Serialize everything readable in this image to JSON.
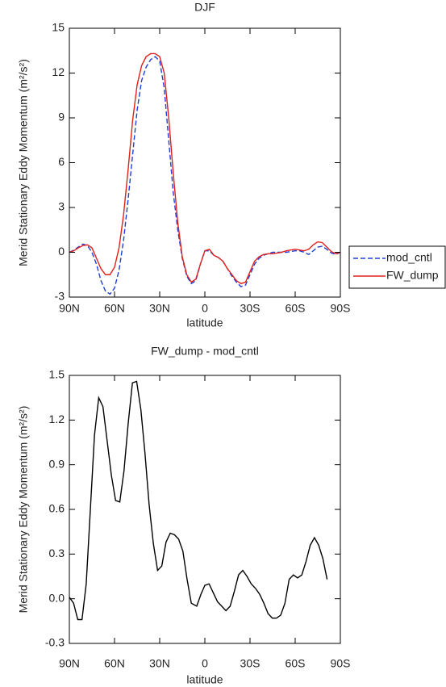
{
  "chart_data": [
    {
      "type": "line",
      "title": "DJF",
      "xlabel": "latitude",
      "ylabel": "Merid Stationary Eddy Momentum (m²/s²)",
      "x": [
        90,
        87,
        84,
        81,
        78,
        75,
        72,
        69,
        66,
        63,
        60,
        57,
        54,
        51,
        48,
        45,
        42,
        39,
        36,
        33,
        30,
        27,
        24,
        21,
        18,
        15,
        12,
        9,
        6,
        3,
        0,
        -3,
        -6,
        -9,
        -12,
        -15,
        -18,
        -21,
        -24,
        -27,
        -30,
        -33,
        -36,
        -39,
        -42,
        -45,
        -48,
        -51,
        -54,
        -57,
        -60,
        -63,
        -66,
        -69,
        -72,
        -75,
        -78,
        -81,
        -84,
        -87,
        -90
      ],
      "series": [
        {
          "name": "mod_cntl",
          "color": "#1f3fd6",
          "linestyle": "dashed",
          "values": [
            0,
            0.15,
            0.35,
            0.55,
            0.45,
            0,
            -0.8,
            -1.9,
            -2.6,
            -2.8,
            -2.4,
            -1.2,
            0.8,
            3.5,
            6.5,
            9.5,
            11.5,
            12.4,
            12.9,
            13.1,
            12.8,
            11,
            7.5,
            4,
            1.5,
            -0.4,
            -1.6,
            -2.1,
            -1.9,
            -0.8,
            0.1,
            0.1,
            -0.2,
            -0.35,
            -0.6,
            -1.1,
            -1.6,
            -2,
            -2.3,
            -2.2,
            -1.5,
            -0.8,
            -0.4,
            -0.2,
            -0.1,
            0,
            0,
            0,
            0,
            0.05,
            0.1,
            0.1,
            0,
            -0.15,
            0.1,
            0.35,
            0.4,
            0.2,
            -0.05,
            -0.15,
            0
          ]
        },
        {
          "name": "FW_dump",
          "color": "#e0201c",
          "linestyle": "solid",
          "values": [
            0,
            0.1,
            0.3,
            0.45,
            0.5,
            0.3,
            -0.4,
            -1.1,
            -1.5,
            -1.5,
            -1,
            0.3,
            2.5,
            5.5,
            8.8,
            11.2,
            12.5,
            13.1,
            13.3,
            13.3,
            13.1,
            12,
            9,
            5.3,
            2,
            -0.3,
            -1.5,
            -2,
            -1.8,
            -0.8,
            0.1,
            0.2,
            -0.2,
            -0.35,
            -0.6,
            -1.1,
            -1.5,
            -1.9,
            -2.1,
            -2,
            -1.3,
            -0.6,
            -0.3,
            -0.15,
            -0.1,
            -0.1,
            -0.05,
            0,
            0.1,
            0.15,
            0.2,
            0.15,
            0.1,
            0.2,
            0.5,
            0.7,
            0.65,
            0.35,
            0.05,
            -0.1,
            0
          ]
        }
      ],
      "xlim": [
        90,
        -90
      ],
      "xticks": [
        {
          "value": 90,
          "label": "90N"
        },
        {
          "value": 60,
          "label": "60N"
        },
        {
          "value": 30,
          "label": "30N"
        },
        0,
        {
          "value": -30,
          "label": "30S"
        },
        {
          "value": -60,
          "label": "60S"
        },
        {
          "value": -90,
          "label": "90S"
        }
      ],
      "ylim": [
        -3,
        15
      ],
      "yticks": [
        15,
        12,
        9,
        6,
        3,
        0,
        -3
      ],
      "legend": "right"
    },
    {
      "type": "line",
      "title": "FW_dump - mod_cntl",
      "xlabel": "latitude",
      "ylabel": "Merid Stationary Eddy Momentum (m²/s²)",
      "x": [
        90,
        87.2,
        84.4,
        81.6,
        78.8,
        73.3,
        70.5,
        67.7,
        62.1,
        59.3,
        56.5,
        53.7,
        50.9,
        48.1,
        45.3,
        42.5,
        39.8,
        37,
        34.2,
        31.4,
        28.6,
        25.8,
        23,
        20.2,
        17.4,
        14.6,
        11.8,
        9,
        5.4,
        2.6,
        0,
        -2.8,
        -5.6,
        -8.4,
        -11.2,
        -14,
        -16.8,
        -19.6,
        -22.4,
        -25.2,
        -28,
        -30.8,
        -33.6,
        -36.4,
        -39.2,
        -42,
        -44.8,
        -47.6,
        -50.4,
        -53.2,
        -56,
        -58.8,
        -61.6,
        -64.4,
        -67.2,
        -70,
        -72.8,
        -75.6,
        -78.4,
        -81.2
      ],
      "series": [
        {
          "name": "FW_dump - mod_cntl",
          "color": "#000000",
          "linestyle": "solid",
          "values": [
            0.01,
            -0.03,
            -0.14,
            -0.14,
            0.1,
            1.1,
            1.35,
            1.29,
            0.83,
            0.66,
            0.65,
            0.86,
            1.18,
            1.45,
            1.46,
            1.27,
            0.98,
            0.63,
            0.37,
            0.19,
            0.22,
            0.38,
            0.44,
            0.43,
            0.4,
            0.32,
            0.13,
            -0.03,
            -0.05,
            0.03,
            0.09,
            0.1,
            0.04,
            -0.02,
            -0.05,
            -0.08,
            -0.05,
            0.05,
            0.16,
            0.19,
            0.15,
            0.1,
            0.07,
            0.03,
            -0.03,
            -0.1,
            -0.13,
            -0.13,
            -0.11,
            -0.03,
            0.13,
            0.16,
            0.14,
            0.16,
            0.25,
            0.36,
            0.41,
            0.36,
            0.27,
            0.13
          ]
        }
      ],
      "xlim": [
        90,
        -90
      ],
      "xticks": [
        {
          "value": 90,
          "label": "90N"
        },
        {
          "value": 60,
          "label": "60N"
        },
        {
          "value": 30,
          "label": "30N"
        },
        0,
        {
          "value": -30,
          "label": "30S"
        },
        {
          "value": -60,
          "label": "60S"
        },
        {
          "value": -90,
          "label": "90S"
        }
      ],
      "ylim": [
        -0.3,
        1.5
      ],
      "yticks": [
        1.5,
        1.2,
        0.9,
        0.6,
        0.3,
        {
          "value": 0,
          "label": "0.0"
        },
        -0.3
      ]
    }
  ]
}
